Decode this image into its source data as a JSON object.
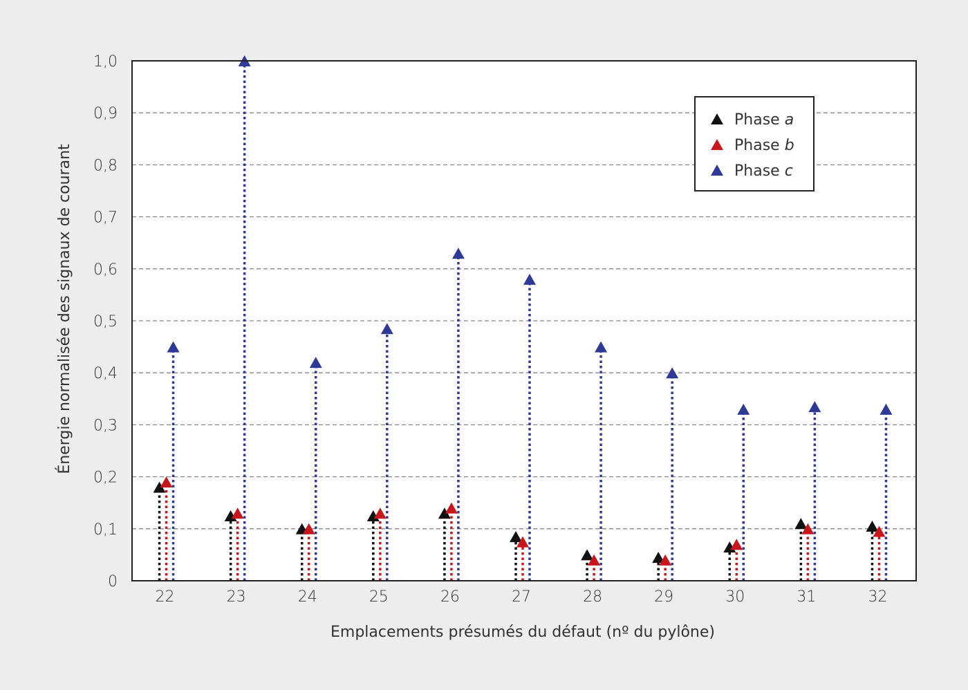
{
  "chart_data": {
    "type": "scatter",
    "title": "",
    "xlabel": "Emplacements présumés du défaut (nº du pylône)",
    "ylabel": "Énergie normalisée des signaux de courant",
    "categories": [
      "22",
      "23",
      "24",
      "25",
      "26",
      "27",
      "28",
      "29",
      "30",
      "31",
      "32"
    ],
    "ylim": [
      0,
      1.0
    ],
    "yticks": [
      "0",
      "0,1",
      "0,2",
      "0,3",
      "0,4",
      "0,5",
      "0,6",
      "0,7",
      "0,8",
      "0,9",
      "1,0"
    ],
    "grid": true,
    "legend_position": "upper right",
    "series": [
      {
        "name": "Phase a",
        "color": "#111111",
        "values": [
          0.18,
          0.125,
          0.1,
          0.125,
          0.13,
          0.085,
          0.05,
          0.045,
          0.065,
          0.11,
          0.105
        ]
      },
      {
        "name": "Phase b",
        "color": "#c8161d",
        "values": [
          0.19,
          0.13,
          0.1,
          0.13,
          0.14,
          0.075,
          0.04,
          0.04,
          0.07,
          0.1,
          0.095
        ]
      },
      {
        "name": "Phase c",
        "color": "#2e3a96",
        "values": [
          0.45,
          1.0,
          0.42,
          0.485,
          0.63,
          0.58,
          0.45,
          0.4,
          0.33,
          0.335,
          0.33
        ]
      }
    ]
  },
  "legend": {
    "items": [
      {
        "prefix": "Phase ",
        "italic": "a",
        "color": "#111111"
      },
      {
        "prefix": "Phase ",
        "italic": "b",
        "color": "#c8161d"
      },
      {
        "prefix": "Phase ",
        "italic": "c",
        "color": "#2e3a96"
      }
    ]
  },
  "axes": {
    "xlabel": "Emplacements présumés du défaut (nº du pylône)",
    "ylabel": "Énergie normalisée des signaux de courant"
  }
}
